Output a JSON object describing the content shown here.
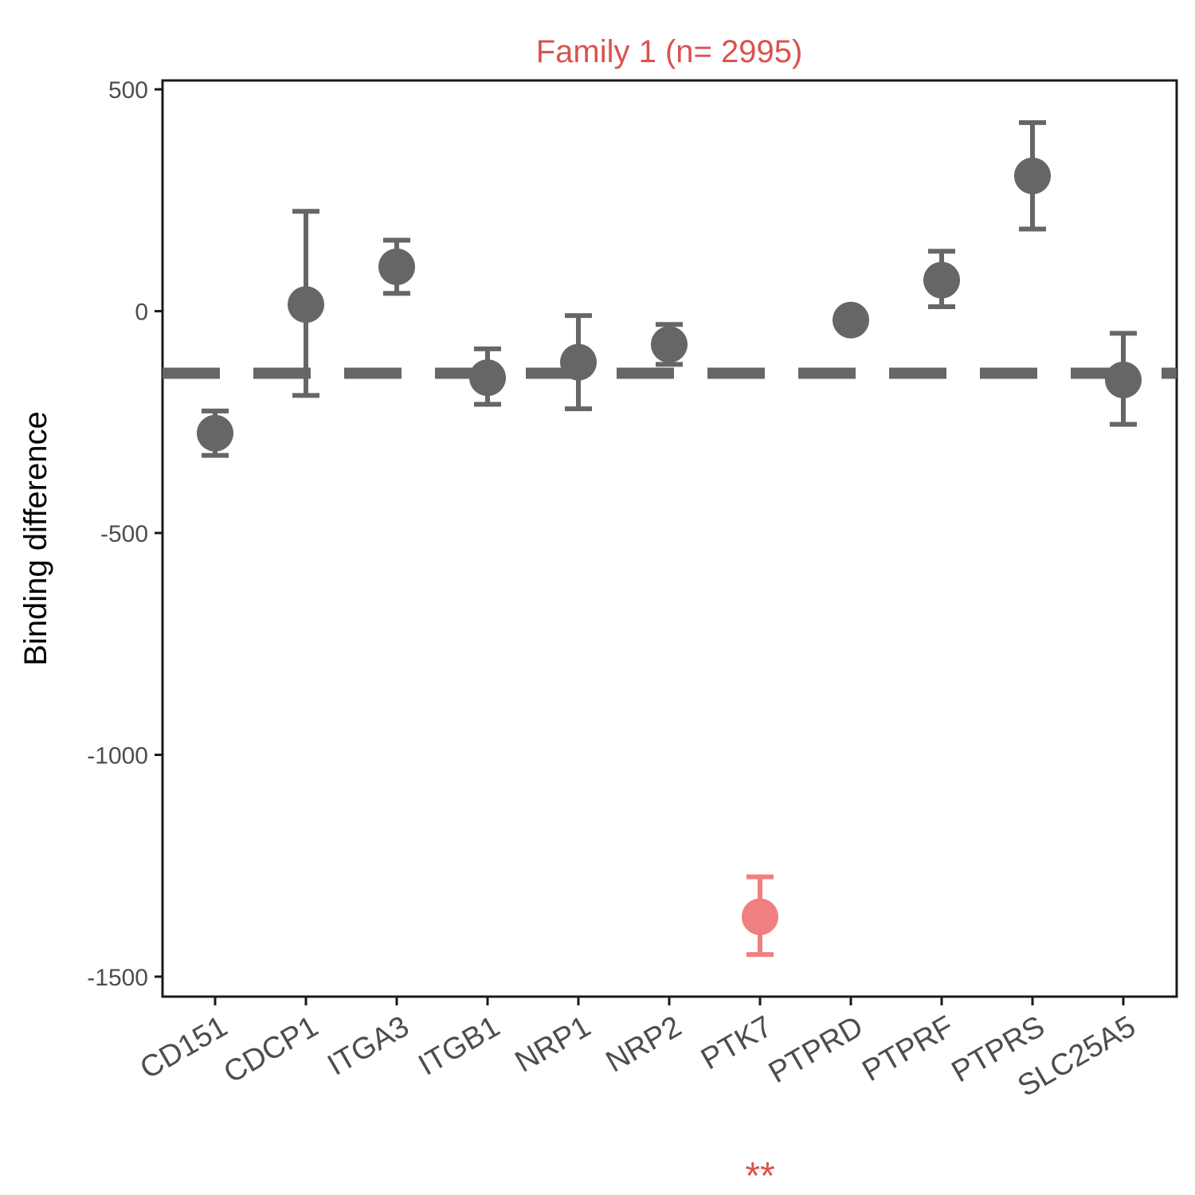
{
  "chart_data": {
    "type": "scatter",
    "title": "Family 1  (n= 2995)",
    "xlabel": "",
    "ylabel": "Binding difference",
    "ylim": [
      -1545,
      520
    ],
    "yticks": [
      500,
      0,
      -500,
      -1000,
      -1500
    ],
    "ytick_labels": [
      "500",
      "0",
      "-500",
      "-1000",
      "-1500"
    ],
    "categories": [
      "CD151",
      "CDCP1",
      "ITGA3",
      "ITGB1",
      "NRP1",
      "NRP2",
      "PTK7",
      "PTPRD",
      "PTPRF",
      "PTPRS",
      "SLC25A5"
    ],
    "values": [
      -275,
      15,
      100,
      -150,
      -115,
      -75,
      -1365,
      -20,
      70,
      305,
      -155
    ],
    "error_low": [
      -325,
      -190,
      40,
      -210,
      -220,
      -120,
      -1450,
      -20,
      10,
      185,
      -255
    ],
    "error_high": [
      -225,
      225,
      160,
      -85,
      -10,
      -30,
      -1275,
      -20,
      135,
      425,
      -50
    ],
    "highlight": [
      "no",
      "no",
      "no",
      "no",
      "no",
      "no",
      "yes",
      "no",
      "no",
      "no",
      "no"
    ],
    "reference_line": -140,
    "annotation": "**",
    "grid": false,
    "colors": {
      "point": "#666666",
      "highlight_point": "#f08080",
      "highlight_text": "#d9534f",
      "title": "#d9534f",
      "axis": "#1a1a1a",
      "tick_text": "#4d4d4d"
    }
  }
}
